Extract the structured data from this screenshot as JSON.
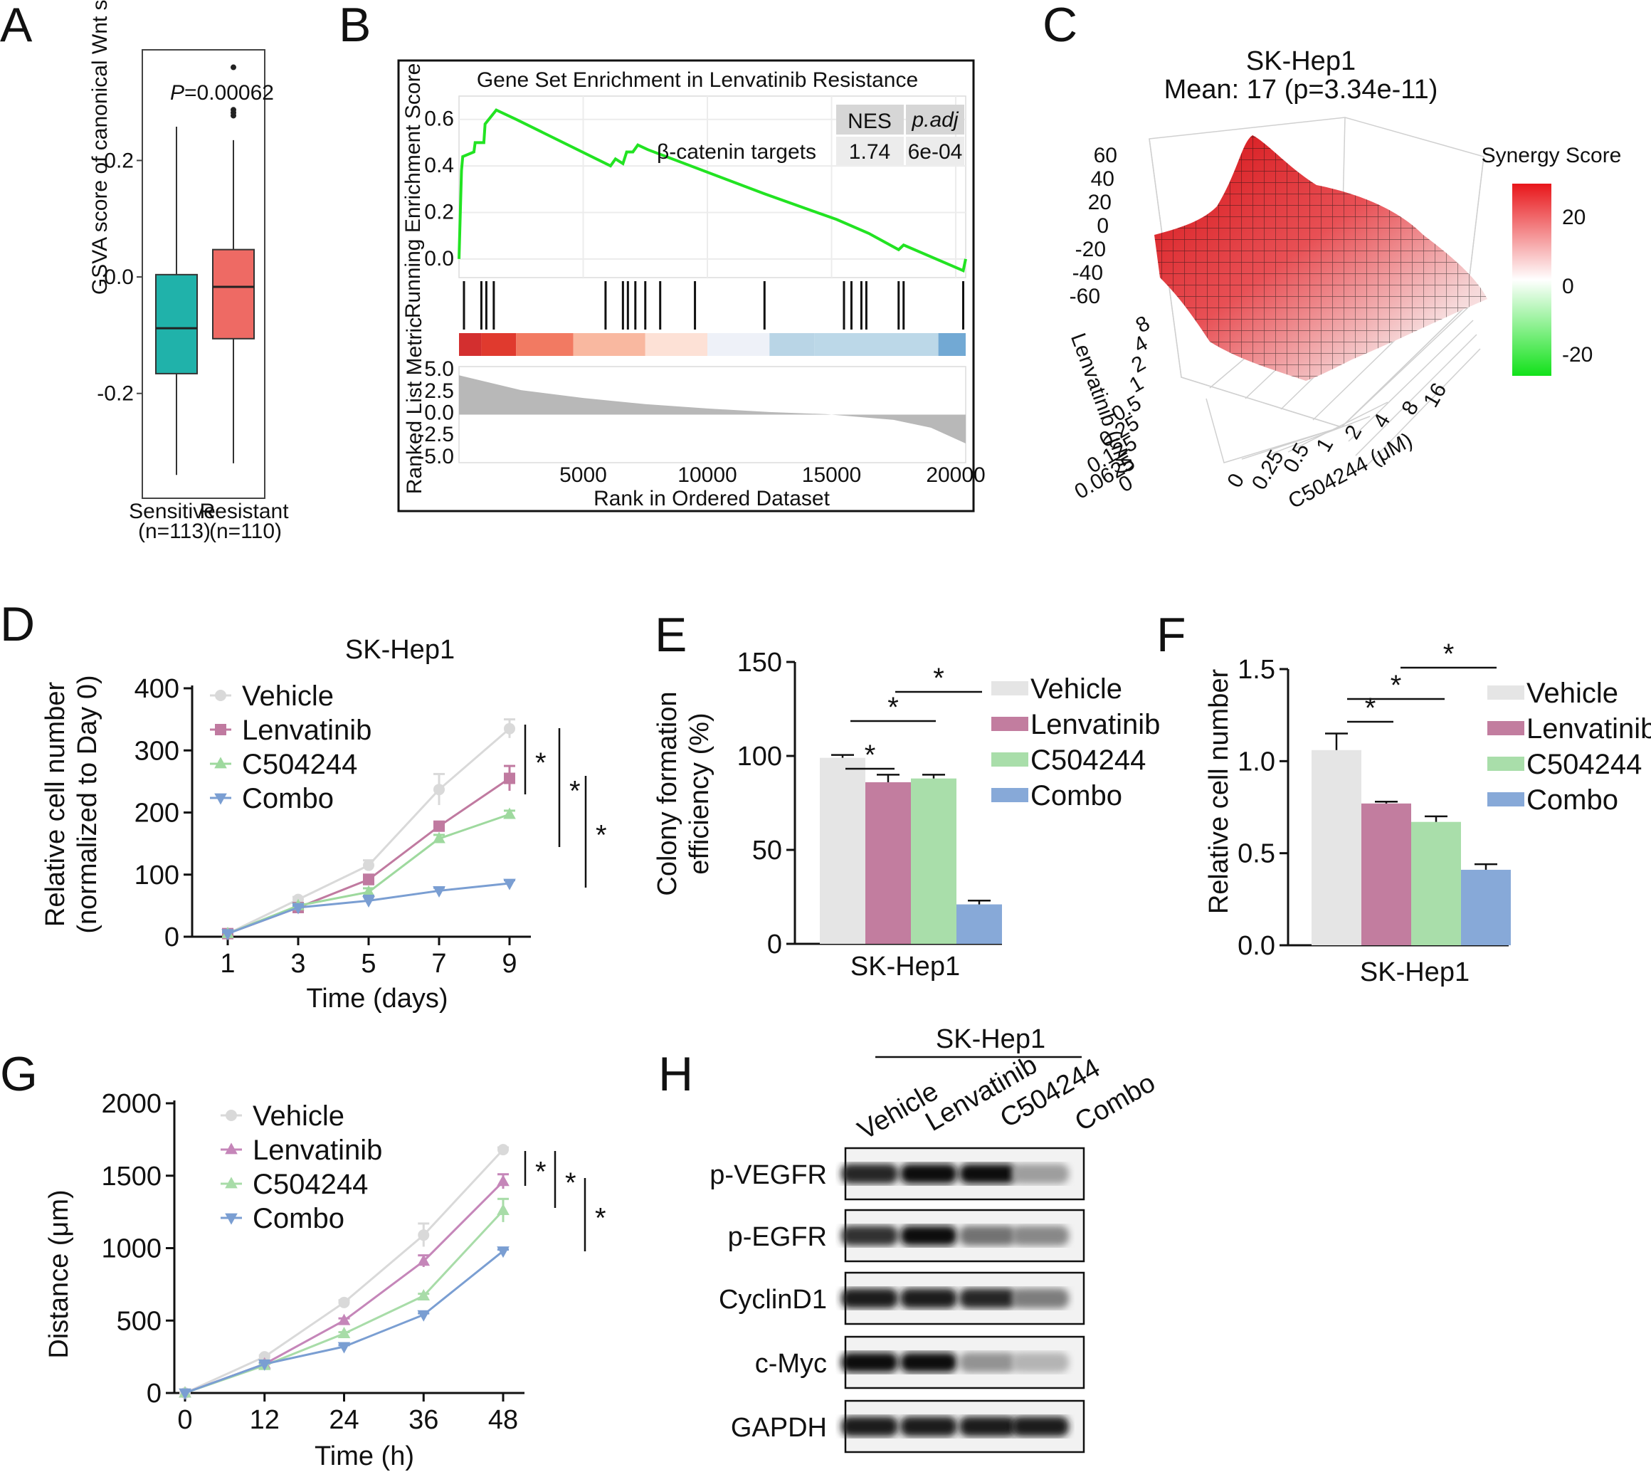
{
  "chart_data": [
    {
      "panel": "A",
      "type": "box",
      "categories": [
        "Sensitive",
        "Resistant"
      ],
      "category_counts": [
        "(n=113)",
        "(n=110)"
      ],
      "ylabel": "GSVA score of canonical Wnt signaling pathway",
      "yticks": [
        "0.2",
        "0.0",
        "-0.2"
      ],
      "ylim": [
        -0.38,
        0.39
      ],
      "annotation_p": "P",
      "annotation_value": "=0.00062",
      "boxes": [
        {
          "name": "Sensitive",
          "min": -0.34,
          "q1": -0.166,
          "median": -0.088,
          "q3": 0.004,
          "max": 0.258,
          "color": "#20b2aa",
          "outliers": []
        },
        {
          "name": "Resistant",
          "min": -0.32,
          "q1": -0.106,
          "median": -0.017,
          "q3": 0.047,
          "max": 0.235,
          "color": "#ee6a64",
          "outliers": [
            0.36,
            0.287,
            0.282,
            0.277
          ]
        }
      ]
    },
    {
      "panel": "B",
      "type": "line",
      "title": "Gene Set Enrichment in Lenvatinib Resistance",
      "ylabel_top": "Running Enrichment Score",
      "ylabel_bottom": "Ranked List Metric",
      "xlabel": "Rank in Ordered Dataset",
      "xticks": [
        "5000",
        "10000",
        "15000",
        "20000"
      ],
      "yticks_top": [
        "0.6",
        "0.4",
        "0.2",
        "0.0"
      ],
      "yticks_bottom": [
        "5.0",
        "2.5",
        "0.0",
        "-2.5",
        "-5.0"
      ],
      "gene_set": "β-catenin targets",
      "table_headers": [
        "NES",
        "p.adj"
      ],
      "table_values": [
        "1.74",
        "6e-04"
      ],
      "es_curve_x": [
        0,
        100,
        150,
        600,
        650,
        1000,
        1050,
        1500,
        2300,
        6100,
        6300,
        6600,
        6750,
        7000,
        7200,
        7600,
        12300,
        15200,
        16500,
        17700,
        17800,
        17900,
        20300,
        20400
      ],
      "es_curve_y": [
        0.0,
        0.38,
        0.44,
        0.46,
        0.5,
        0.5,
        0.58,
        0.64,
        0.6,
        0.4,
        0.43,
        0.41,
        0.46,
        0.46,
        0.49,
        0.47,
        0.28,
        0.17,
        0.11,
        0.04,
        0.05,
        0.06,
        -0.05,
        0.0
      ],
      "hit_ranks": [
        200,
        900,
        1100,
        1400,
        5900,
        6600,
        6800,
        7100,
        7500,
        8100,
        9500,
        12300,
        15500,
        15800,
        16200,
        16400,
        17700,
        17900,
        20300
      ],
      "metric_curve_x": [
        0,
        2500,
        5000,
        7500,
        10000,
        12500,
        14800,
        15200,
        17500,
        19000,
        20400
      ],
      "metric_curve_y": [
        4.5,
        2.8,
        1.9,
        1.2,
        0.7,
        0.3,
        0.05,
        -0.05,
        -0.6,
        -1.5,
        -3.3
      ],
      "heat_colors": [
        "#d32f2f",
        "#e03a2e",
        "#f27a62",
        "#f9b8a0",
        "#fde1d6",
        "#eef1f8",
        "#b9d5e6",
        "#bcd8e8",
        "#72a9d4"
      ]
    },
    {
      "panel": "C",
      "type": "surface3d",
      "title": "SK-Hep1",
      "subtitle": "Mean: 17 (p=3.34e-11)",
      "zticks": [
        "60",
        "40",
        "20",
        "0",
        "-20",
        "-40",
        "-60"
      ],
      "lenvatinib_ticks": [
        "8",
        "4",
        "2",
        "1",
        "0.5",
        "0.25",
        "0.125",
        "0.0625",
        "0"
      ],
      "c504244_ticks": [
        "0",
        "0.25",
        "0.5",
        "1",
        "2",
        "4",
        "8",
        "16"
      ],
      "ylabel": "Lenvatinib (μM)",
      "xlabel": "C504244 (μM)",
      "colorbar_title": "Synergy Score",
      "colorbar_ticks": [
        "20",
        "0",
        "-20"
      ],
      "colorbar_colors": [
        "#e8161a",
        "#ffffff",
        "#12e11a"
      ]
    },
    {
      "panel": "D",
      "type": "line",
      "title": "SK-Hep1",
      "xlabel": "Time (days)",
      "ylabel_line1": "Relative cell number",
      "ylabel_line2": "(normalized to Day 0)",
      "x": [
        1,
        3,
        5,
        7,
        9
      ],
      "ylim": [
        0,
        400
      ],
      "yticks": [
        "0",
        "100",
        "200",
        "300",
        "400"
      ],
      "xticks": [
        "1",
        "3",
        "5",
        "7",
        "9"
      ],
      "series": [
        {
          "name": "Vehicle",
          "values": [
            5,
            60,
            115,
            237,
            335
          ],
          "errors": [
            2,
            4,
            8,
            25,
            15
          ],
          "color": "#d9d9d9",
          "marker": "circle"
        },
        {
          "name": "Lenvatinib",
          "values": [
            5,
            47,
            92,
            178,
            255
          ],
          "errors": [
            2,
            3,
            8,
            6,
            20
          ],
          "color": "#c07aa0",
          "marker": "square"
        },
        {
          "name": "C504244",
          "values": [
            5,
            50,
            72,
            158,
            197
          ],
          "errors": [
            2,
            3,
            6,
            6,
            6
          ],
          "color": "#9ed99e",
          "marker": "triangle-up"
        },
        {
          "name": "Combo",
          "values": [
            5,
            47,
            58,
            74,
            86
          ],
          "errors": [
            2,
            3,
            8,
            5,
            5
          ],
          "color": "#7a9ed2",
          "marker": "triangle-down"
        }
      ],
      "significance": [
        "*",
        "*",
        "*"
      ]
    },
    {
      "panel": "E",
      "type": "bar",
      "ylabel_line1": "Colony formation",
      "ylabel_line2": "efficiency (%)",
      "xlabel": "SK-Hep1",
      "ylim": [
        0,
        150
      ],
      "yticks": [
        "0",
        "50",
        "100",
        "150"
      ],
      "categories": [
        "Vehicle",
        "Lenvatinib",
        "C504244",
        "Combo"
      ],
      "values": [
        99,
        86,
        88,
        21
      ],
      "errors": [
        1.5,
        4,
        2,
        2
      ],
      "colors": [
        "#e5e5e5",
        "#c27d9f",
        "#a9deaa",
        "#87a9d8"
      ],
      "significance": [
        "*",
        "*",
        "*"
      ]
    },
    {
      "panel": "F",
      "type": "bar",
      "ylabel": "Relative cell number",
      "xlabel": "SK-Hep1",
      "ylim": [
        0,
        1.5
      ],
      "yticks": [
        "0.0",
        "0.5",
        "1.0",
        "1.5"
      ],
      "categories": [
        "Vehicle",
        "Lenvatinib",
        "C504244",
        "Combo"
      ],
      "values": [
        1.06,
        0.77,
        0.67,
        0.41
      ],
      "errors": [
        0.09,
        0.01,
        0.03,
        0.03
      ],
      "colors": [
        "#e5e5e5",
        "#c27d9f",
        "#a9deaa",
        "#87a9d8"
      ],
      "significance": [
        "*",
        "*",
        "*"
      ]
    },
    {
      "panel": "G",
      "type": "line",
      "xlabel": "Time (h)",
      "ylabel": "Distance (μm)",
      "x": [
        0,
        12,
        24,
        36,
        48
      ],
      "ylim": [
        0,
        2000
      ],
      "yticks": [
        "0",
        "500",
        "1000",
        "1500",
        "2000"
      ],
      "xticks": [
        "0",
        "12",
        "24",
        "36",
        "48"
      ],
      "series": [
        {
          "name": "Vehicle",
          "values": [
            0,
            250,
            625,
            1090,
            1680
          ],
          "errors": [
            0,
            10,
            15,
            80,
            15
          ],
          "color": "#d9d9d9",
          "marker": "circle"
        },
        {
          "name": "Lenvatinib",
          "values": [
            0,
            200,
            500,
            910,
            1460
          ],
          "errors": [
            0,
            10,
            15,
            40,
            50
          ],
          "color": "#c586b9",
          "marker": "triangle-up"
        },
        {
          "name": "C504244",
          "values": [
            0,
            190,
            410,
            670,
            1260
          ],
          "errors": [
            0,
            10,
            10,
            15,
            80
          ],
          "color": "#a8dca8",
          "marker": "triangle-up"
        },
        {
          "name": "Combo",
          "values": [
            0,
            200,
            320,
            540,
            980
          ],
          "errors": [
            0,
            10,
            10,
            10,
            10
          ],
          "color": "#7a9ed2",
          "marker": "triangle-down"
        }
      ],
      "significance": [
        "*",
        "*",
        "*"
      ]
    },
    {
      "panel": "H",
      "type": "western-blot",
      "header": "SK-Hep1",
      "lanes": [
        "Vehicle",
        "Lenvatinib",
        "C504244",
        "Combo"
      ],
      "rows": [
        {
          "name": "p-VEGFR",
          "intensity": [
            0.9,
            1.0,
            1.0,
            0.35
          ]
        },
        {
          "name": "p-EGFR",
          "intensity": [
            0.85,
            1.0,
            0.55,
            0.45
          ]
        },
        {
          "name": "CyclinD1",
          "intensity": [
            0.95,
            0.95,
            0.9,
            0.5
          ]
        },
        {
          "name": "c-Myc",
          "intensity": [
            1.0,
            1.0,
            0.4,
            0.25
          ]
        },
        {
          "name": "GAPDH",
          "intensity": [
            0.95,
            0.95,
            0.95,
            0.95
          ]
        }
      ]
    }
  ],
  "panel_letters": [
    "A",
    "B",
    "C",
    "D",
    "E",
    "F",
    "G",
    "H"
  ]
}
